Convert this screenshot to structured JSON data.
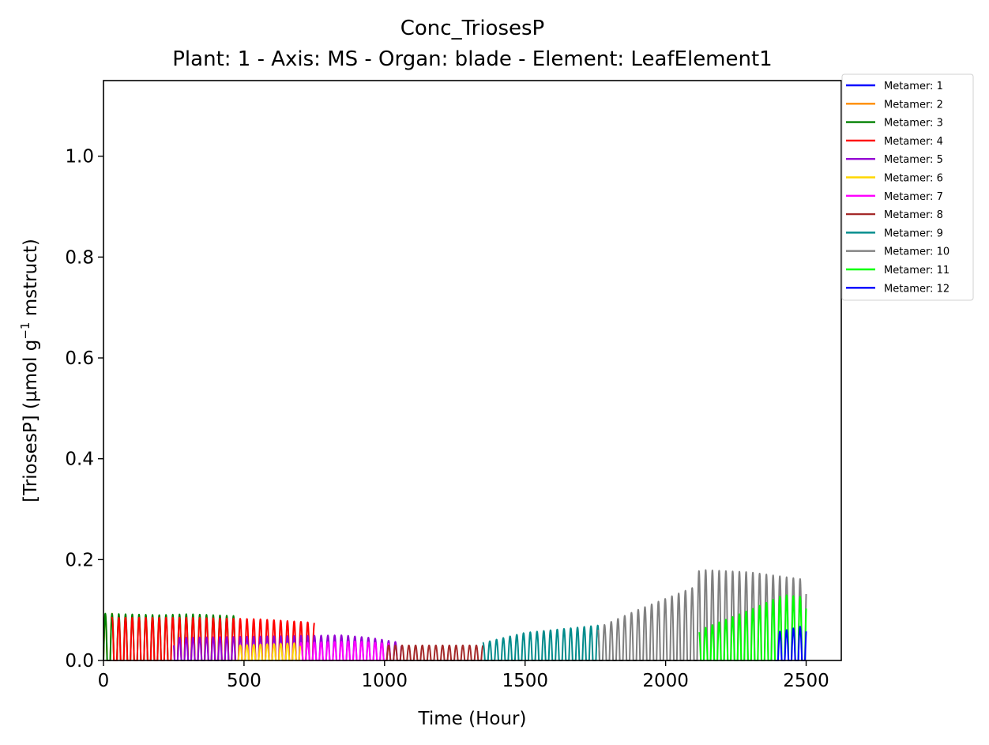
{
  "chart_data": {
    "type": "line",
    "title": "Conc_TriosesP",
    "subtitle": "Plant: 1 - Axis: MS - Organ: blade - Element: LeafElement1",
    "xlabel": "Time (Hour)",
    "ylabel_parts": {
      "before": "[TriosesP] (µmol g",
      "superscript": "−1",
      "after": " mstruct)"
    },
    "xlim": [
      0,
      2625
    ],
    "ylim": [
      0,
      1.15
    ],
    "xticks": [
      "0",
      "500",
      "1000",
      "1500",
      "2000",
      "2500"
    ],
    "xtick_values": [
      0,
      500,
      1000,
      1500,
      2000,
      2500
    ],
    "yticks": [
      "0.0",
      "0.2",
      "0.4",
      "0.6",
      "0.8",
      "1.0"
    ],
    "ytick_values": [
      0.0,
      0.2,
      0.4,
      0.6,
      0.8,
      1.0
    ],
    "grid": false,
    "legend_position": "outside-upper-right",
    "oscillation_period_hours": 24,
    "series": [
      {
        "name": "Metamer: 1",
        "color": "#0000ff",
        "start": 0,
        "end": 0,
        "peaks": [
          [
            0,
            0
          ]
        ]
      },
      {
        "name": "Metamer: 2",
        "color": "#ff8c00",
        "start": 0,
        "end": 50,
        "peaks": [
          [
            0,
            0.09
          ],
          [
            50,
            0.095
          ]
        ]
      },
      {
        "name": "Metamer: 3",
        "color": "#008000",
        "start": 0,
        "end": 480,
        "peaks": [
          [
            0,
            0.093
          ],
          [
            200,
            0.09
          ],
          [
            300,
            0.092
          ],
          [
            480,
            0.088
          ]
        ]
      },
      {
        "name": "Metamer: 4",
        "color": "#ff0000",
        "start": 30,
        "end": 750,
        "peaks": [
          [
            30,
            0.085
          ],
          [
            300,
            0.085
          ],
          [
            550,
            0.082
          ],
          [
            750,
            0.075
          ]
        ]
      },
      {
        "name": "Metamer: 5",
        "color": "#9400d3",
        "start": 250,
        "end": 1060,
        "peaks": [
          [
            250,
            0.045
          ],
          [
            850,
            0.05
          ],
          [
            950,
            0.045
          ],
          [
            1060,
            0.035
          ]
        ]
      },
      {
        "name": "Metamer: 6",
        "color": "#ffd700",
        "start": 470,
        "end": 720,
        "peaks": [
          [
            470,
            0.03
          ],
          [
            720,
            0.035
          ]
        ]
      },
      {
        "name": "Metamer: 7",
        "color": "#ff00ff",
        "start": 700,
        "end": 1020,
        "peaks": [
          [
            700,
            0.035
          ],
          [
            900,
            0.038
          ],
          [
            1020,
            0.033
          ]
        ]
      },
      {
        "name": "Metamer: 8",
        "color": "#a52a2a",
        "start": 1000,
        "end": 1350,
        "peaks": [
          [
            1000,
            0.03
          ],
          [
            1200,
            0.03
          ],
          [
            1350,
            0.03
          ]
        ]
      },
      {
        "name": "Metamer: 9",
        "color": "#008b8b",
        "start": 1350,
        "end": 1770,
        "peaks": [
          [
            1350,
            0.035
          ],
          [
            1500,
            0.055
          ],
          [
            1770,
            0.07
          ]
        ]
      },
      {
        "name": "Metamer: 10",
        "color": "#808080",
        "start": 1760,
        "end": 2500,
        "peaks": [
          [
            1760,
            0.065
          ],
          [
            1900,
            0.1
          ],
          [
            2100,
            0.145
          ],
          [
            2120,
            0.18
          ],
          [
            2300,
            0.175
          ],
          [
            2500,
            0.16
          ]
        ]
      },
      {
        "name": "Metamer: 11",
        "color": "#00ff00",
        "start": 2120,
        "end": 2500,
        "peaks": [
          [
            2120,
            0.06
          ],
          [
            2300,
            0.1
          ],
          [
            2420,
            0.13
          ],
          [
            2500,
            0.125
          ]
        ]
      },
      {
        "name": "Metamer: 12",
        "color": "#0000ff",
        "start": 2390,
        "end": 2500,
        "peaks": [
          [
            2390,
            0.055
          ],
          [
            2500,
            0.07
          ]
        ]
      }
    ]
  }
}
